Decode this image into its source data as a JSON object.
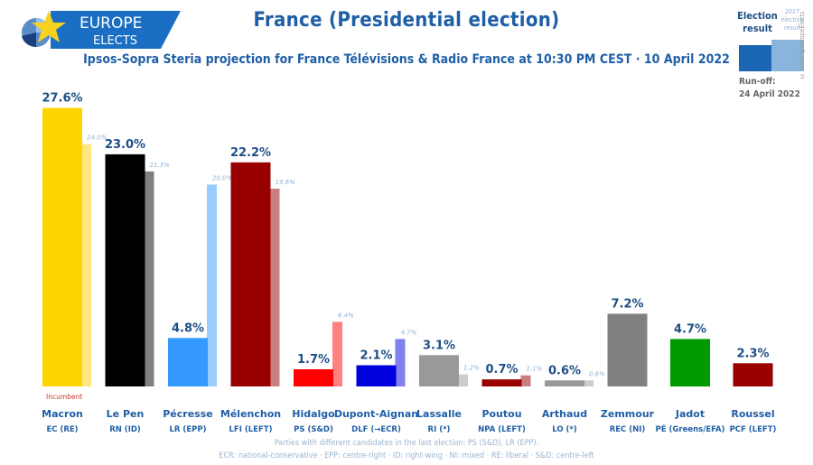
{
  "header": {
    "logo_line1": "EUROPE",
    "logo_line2": "ELECTS",
    "title": "France (Presidential election)",
    "subtitle": "Ipsos-Sopra Steria projection for France Télévisions & Radio France at 10:30 PM CEST · 10 April 2022"
  },
  "legend": {
    "current_label": "Election result",
    "previous_label": "2017 election result",
    "runoff_label": "Run-off:",
    "runoff_date": "24 April 2022",
    "copyright": "© 2022 @EuropeElects",
    "colors": {
      "current": "#1a66b3",
      "previous": "#8ab4de"
    }
  },
  "notes": {
    "line1": "Parties with different candidates in the last election: PS (S&D), LR (EPP).",
    "line2": "ECR: national-conservative · EPP: centre-right · ID: right-wing · NI: mixed · RE: liberal · S&D: centre-left"
  },
  "chart_data": {
    "type": "bar",
    "title": "France (Presidential election)",
    "xlabel": "",
    "ylabel": "",
    "ylim": [
      0,
      28
    ],
    "grid": false,
    "legend_position": "top-right",
    "categories": [
      "Macron",
      "Le Pen",
      "Pécresse",
      "Mélenchon",
      "Hidalgo",
      "Dupont-Aignan",
      "Lassalle",
      "Poutou",
      "Arthaud",
      "Zemmour",
      "Jadot",
      "Roussel"
    ],
    "parties": [
      "EC (RE)",
      "RN (ID)",
      "LR (EPP)",
      "LFI (LEFT)",
      "PS (S&D)",
      "DLF (→ECR)",
      "RI (*)",
      "NPA (LEFT)",
      "LO (*)",
      "REC (NI)",
      "PÉ (Greens/EFA)",
      "PCF (LEFT)"
    ],
    "series": [
      {
        "name": "Election result",
        "values": [
          27.6,
          23.0,
          4.8,
          22.2,
          1.7,
          2.1,
          3.1,
          0.7,
          0.6,
          7.2,
          4.7,
          2.3
        ],
        "labels": [
          "27.6%",
          "23.0%",
          "4.8%",
          "22.2%",
          "1.7%",
          "2.1%",
          "3.1%",
          "0.7%",
          "0.6%",
          "7.2%",
          "4.7%",
          "2.3%"
        ]
      },
      {
        "name": "2017 election result",
        "values": [
          24.0,
          21.3,
          20.0,
          19.6,
          6.4,
          4.7,
          1.2,
          1.1,
          0.6,
          null,
          null,
          null
        ],
        "labels": [
          "24.0%",
          "21.3%",
          "20.0%",
          "19.6%",
          "6.4%",
          "4.7%",
          "1.2%",
          "1.1%",
          "0.6%",
          null,
          null,
          null
        ]
      }
    ],
    "colors": [
      "#ffd500",
      "#000000",
      "#3399ff",
      "#990000",
      "#ff0000",
      "#0000dd",
      "#999999",
      "#990000",
      "#999999",
      "#808080",
      "#009900",
      "#990000"
    ],
    "colors_previous": [
      "#ffe680",
      "#808080",
      "#99ccff",
      "#cc7f7f",
      "#ff8080",
      "#8080ee",
      "#cccccc",
      "#cc7f7f",
      "#cccccc",
      null,
      null,
      null
    ],
    "annotations": [
      {
        "candidate": "Macron",
        "text": "Incumbent"
      }
    ]
  }
}
